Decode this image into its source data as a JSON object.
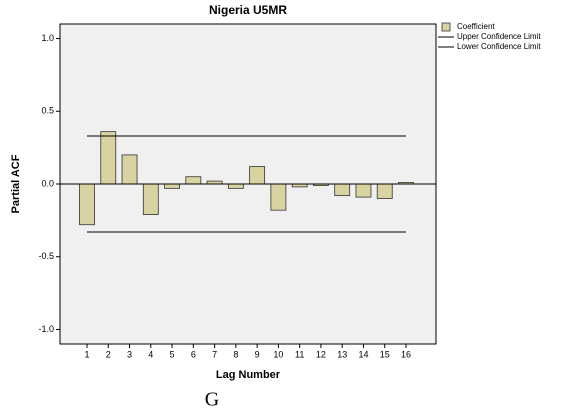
{
  "chart_data": {
    "type": "bar",
    "title": "Nigeria U5MR",
    "x_label": "Lag Number",
    "y_label": "Partial ACF",
    "caption": "G",
    "categories": [
      "1",
      "2",
      "3",
      "4",
      "5",
      "6",
      "7",
      "8",
      "9",
      "10",
      "11",
      "12",
      "13",
      "14",
      "15",
      "16"
    ],
    "series": [
      {
        "name": "Coefficient",
        "type": "bar",
        "color": "#d8d3a0",
        "values": [
          -0.28,
          0.36,
          0.2,
          -0.21,
          -0.03,
          0.05,
          0.02,
          -0.03,
          0.12,
          -0.18,
          -0.02,
          -0.01,
          -0.08,
          -0.09,
          -0.1,
          0.01
        ]
      },
      {
        "name": "Upper Confidence Limit",
        "type": "line",
        "color": "#000000",
        "values": [
          0.33,
          0.33,
          0.33,
          0.33,
          0.33,
          0.33,
          0.33,
          0.33,
          0.33,
          0.33,
          0.33,
          0.33,
          0.33,
          0.33,
          0.33,
          0.33
        ]
      },
      {
        "name": "Lower Confidence Limit",
        "type": "line",
        "color": "#000000",
        "values": [
          -0.33,
          -0.33,
          -0.33,
          -0.33,
          -0.33,
          -0.33,
          -0.33,
          -0.33,
          -0.33,
          -0.33,
          -0.33,
          -0.33,
          -0.33,
          -0.33,
          -0.33,
          -0.33
        ]
      }
    ],
    "ylim": [
      -1.1,
      1.1
    ],
    "yticks": [
      {
        "value": -1,
        "label": "-1.0"
      },
      -0.5,
      {
        "value": 0,
        "label": "0.0"
      },
      0.5,
      {
        "value": 1,
        "label": "1.0"
      }
    ],
    "legend": "right",
    "background": "#f0f0f0"
  }
}
